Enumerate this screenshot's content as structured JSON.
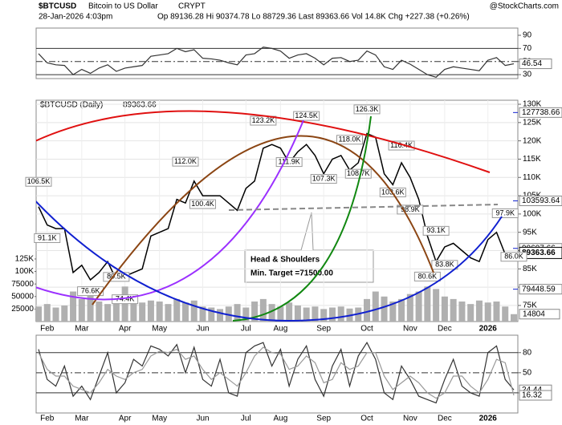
{
  "header": {
    "symbol": "$BTCUSD",
    "name": "Bitcoin to US Dollar",
    "exchange": "CRYPT",
    "date": "28-Jan-2026 4:03pm",
    "quote": "Op 89136.28  Hi 90374.78  Lo 88729.36  Last 89363.66  Vol 14.8K  Chg +227.38 (+0.26%)",
    "credit": "@StockCharts.com"
  },
  "chart_data": [
    {
      "type": "line",
      "ylim": [
        24,
        101
      ],
      "yticks": [
        90,
        70,
        50,
        30
      ],
      "solid_lines": [
        70,
        30
      ],
      "dash_lines": [
        50
      ],
      "series": [
        {
          "color": "#333333",
          "values": [
            62,
            48,
            45,
            44,
            30,
            38,
            32,
            40,
            45,
            35,
            40,
            42,
            44,
            58,
            60,
            62,
            70,
            65,
            68,
            55,
            54,
            52,
            48,
            45,
            60,
            62,
            72,
            70,
            66,
            55,
            60,
            62,
            55,
            45,
            55,
            56,
            50,
            52,
            66,
            60,
            42,
            38,
            52,
            46,
            38,
            30,
            26,
            38,
            42,
            40,
            38,
            36,
            52,
            56,
            44,
            46.54
          ]
        }
      ]
    },
    {
      "type": "line",
      "categories": [
        null,
        "Feb",
        null,
        null,
        null,
        "Mar",
        null,
        null,
        null,
        null,
        "Apr",
        null,
        null,
        null,
        "May",
        null,
        null,
        null,
        null,
        "Jun",
        null,
        null,
        null,
        null,
        "Jul",
        null,
        null,
        null,
        "Aug",
        null,
        null,
        null,
        null,
        "Sep",
        null,
        null,
        null,
        null,
        "Oct",
        null,
        null,
        null,
        null,
        "Nov",
        null,
        null,
        null,
        "Dec",
        null,
        null,
        null,
        null,
        "2026",
        null,
        null,
        null
      ],
      "ylim": [
        70600,
        131100
      ],
      "yticks": [
        {
          "value": 75000,
          "label": "75K"
        },
        {
          "value": 80000,
          "label": "80K"
        },
        {
          "value": 85000,
          "label": "85K"
        },
        {
          "value": 90000,
          "label": "90K"
        },
        {
          "value": 95000,
          "label": "95K"
        },
        {
          "value": 100000,
          "label": "100K"
        },
        {
          "value": 105000,
          "label": "105K"
        },
        {
          "value": 110000,
          "label": "110K"
        },
        {
          "value": 115000,
          "label": "115K"
        },
        {
          "value": 120000,
          "label": "120K"
        },
        {
          "value": 125000,
          "label": "125K"
        },
        {
          "value": 130000,
          "label": "130K"
        }
      ],
      "y2lim": [
        0,
        442000
      ],
      "y2ticks": [
        {
          "value": 125000,
          "label": "125K"
        },
        {
          "value": 100000,
          "label": "100K"
        },
        75000,
        50000,
        25000
      ],
      "grid": true,
      "series": [
        {
          "name": "$BTCUSD (Daily)",
          "color": "#000000",
          "values": [
            102000,
            97000,
            96000,
            96000,
            84000,
            86000,
            82000,
            84000,
            87000,
            82000,
            83000,
            84000,
            85000,
            94000,
            95000,
            96000,
            104000,
            103000,
            109000,
            105000,
            105000,
            105000,
            103000,
            101000,
            107000,
            109000,
            118000,
            119000,
            118000,
            114000,
            117000,
            119000,
            116000,
            111000,
            115000,
            116000,
            112000,
            114000,
            122000,
            121000,
            111000,
            108000,
            114000,
            110000,
            104000,
            94000,
            87000,
            91000,
            92000,
            90000,
            88000,
            87000,
            93000,
            95000,
            89000,
            89363.66
          ]
        },
        {
          "type": "bar",
          "axis": "y2",
          "color": "#b0b0b0",
          "values": [
            30000,
            35000,
            28000,
            32000,
            60000,
            45000,
            55000,
            40000,
            35000,
            50000,
            70000,
            45000,
            38000,
            42000,
            40000,
            35000,
            45000,
            38000,
            42000,
            30000,
            28000,
            25000,
            30000,
            35000,
            28000,
            40000,
            45000,
            35000,
            30000,
            38000,
            32000,
            28000,
            30000,
            25000,
            28000,
            30000,
            26000,
            28000,
            45000,
            60000,
            50000,
            40000,
            45000,
            55000,
            60000,
            70000,
            65000,
            50000,
            45000,
            40000,
            35000,
            42000,
            38000,
            40000,
            30000,
            14804
          ]
        }
      ],
      "overlay_values": [
        127738.66,
        103593.64,
        90607.66,
        79448.59
      ],
      "annotations": [
        {
          "label": "106.5K",
          "value": 106500,
          "x": 0
        },
        {
          "label": "91.1K",
          "value": 91100,
          "x": 1
        },
        {
          "label": "76.6K",
          "value": 76600,
          "x": 6
        },
        {
          "label": "80.5K",
          "value": 80500,
          "x": 9
        },
        {
          "label": "74.4K",
          "value": 74400,
          "x": 10
        },
        {
          "label": "112.0K",
          "value": 112000,
          "x": 17
        },
        {
          "label": "100.4K",
          "value": 100400,
          "x": 19
        },
        {
          "label": "123.2K",
          "value": 123200,
          "x": 26
        },
        {
          "label": "111.9K",
          "value": 111900,
          "x": 29
        },
        {
          "label": "124.5K",
          "value": 124500,
          "x": 31
        },
        {
          "label": "107.3K",
          "value": 107300,
          "x": 33
        },
        {
          "label": "118.0K",
          "value": 118000,
          "x": 36
        },
        {
          "label": "108.7K",
          "value": 108700,
          "x": 37
        },
        {
          "label": "126.3K",
          "value": 126300,
          "x": 38
        },
        {
          "label": "103.6K",
          "value": 103600,
          "x": 41
        },
        {
          "label": "116.4K",
          "value": 116400,
          "x": 42
        },
        {
          "label": "98.9K",
          "value": 98900,
          "x": 43
        },
        {
          "label": "80.6K",
          "value": 80600,
          "x": 45
        },
        {
          "label": "93.1K",
          "value": 93100,
          "x": 46
        },
        {
          "label": "83.8K",
          "value": 83800,
          "x": 47
        },
        {
          "label": "97.9K",
          "value": 97900,
          "x": 54
        },
        {
          "label": "86.0K",
          "value": 86000,
          "x": 55
        }
      ],
      "callout": [
        "Head & Shoulders",
        "Min. Target =71500.00"
      ]
    },
    {
      "type": "line",
      "ylim": [
        -10,
        106
      ],
      "yticks": [
        80,
        50,
        20
      ],
      "solid_lines": [
        80,
        20
      ],
      "dash_lines": [
        50
      ],
      "series": [
        {
          "color": "#333333",
          "values": [
            85,
            40,
            30,
            60,
            15,
            30,
            10,
            45,
            80,
            20,
            35,
            70,
            60,
            90,
            85,
            75,
            92,
            50,
            88,
            40,
            30,
            70,
            20,
            15,
            80,
            90,
            95,
            60,
            85,
            30,
            70,
            90,
            40,
            15,
            60,
            85,
            30,
            75,
            95,
            70,
            20,
            10,
            60,
            40,
            15,
            10,
            5,
            40,
            70,
            30,
            20,
            15,
            80,
            90,
            40,
            24.44
          ]
        },
        {
          "color": "#999999",
          "values": [
            80,
            55,
            45,
            45,
            30,
            25,
            20,
            35,
            55,
            45,
            40,
            50,
            55,
            75,
            82,
            80,
            85,
            70,
            75,
            55,
            40,
            50,
            40,
            30,
            50,
            75,
            88,
            80,
            78,
            55,
            60,
            75,
            65,
            35,
            40,
            65,
            55,
            60,
            80,
            80,
            45,
            25,
            35,
            45,
            35,
            20,
            12,
            20,
            45,
            45,
            30,
            20,
            40,
            70,
            65,
            16.32
          ]
        }
      ]
    }
  ]
}
